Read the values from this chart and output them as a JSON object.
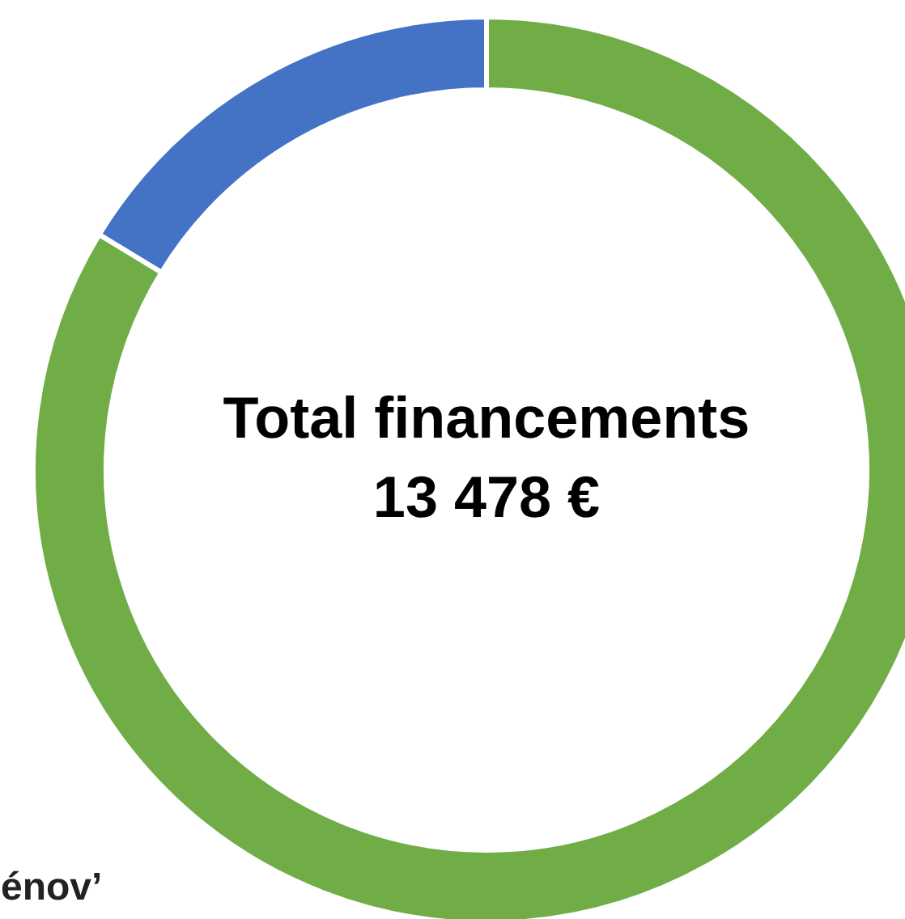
{
  "chart_data": {
    "type": "donut",
    "title": "Total financements",
    "subtitle": "13 478 €",
    "categories": [
      null,
      null
    ],
    "values": [
      83.7,
      16.3
    ],
    "colors": [
      "#70ad47",
      "#4472c4"
    ],
    "annotations": [
      "énov’"
    ]
  }
}
